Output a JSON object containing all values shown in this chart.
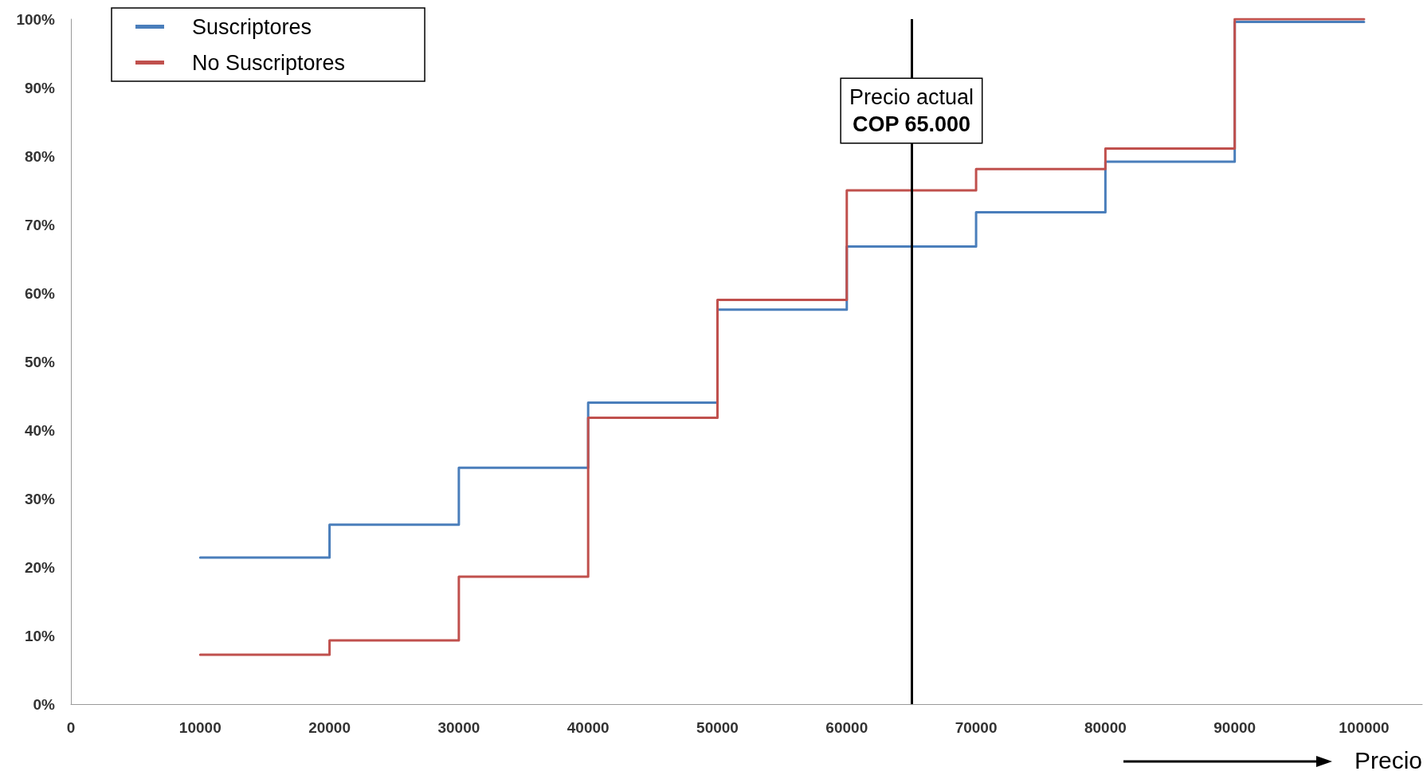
{
  "chart_data": {
    "type": "step",
    "xlabel": "Precio",
    "x": [
      10000,
      20000,
      30000,
      40000,
      50000,
      60000,
      70000,
      80000,
      90000,
      100000
    ],
    "series": [
      {
        "name": "Suscriptores",
        "color": "#4a7ebb",
        "values": [
          21.4,
          26.2,
          34.5,
          44,
          57.6,
          66.8,
          71.8,
          79.2,
          99.6,
          99.6
        ]
      },
      {
        "name": "No Suscriptores",
        "color": "#c0504d",
        "values": [
          7.2,
          9.3,
          18.6,
          41.8,
          59,
          75,
          78.1,
          81.1,
          100,
          100
        ]
      }
    ],
    "xlim": [
      0,
      104500
    ],
    "xticks": [
      0,
      10000,
      20000,
      30000,
      40000,
      50000,
      60000,
      70000,
      80000,
      90000,
      100000
    ],
    "ylim": [
      0,
      100
    ],
    "yticks": [
      {
        "value": 0,
        "label": "0%"
      },
      {
        "value": 10,
        "label": "10%"
      },
      {
        "value": 20,
        "label": "20%"
      },
      {
        "value": 30,
        "label": "30%"
      },
      {
        "value": 40,
        "label": "40%"
      },
      {
        "value": 50,
        "label": "50%"
      },
      {
        "value": 60,
        "label": "60%"
      },
      {
        "value": 70,
        "label": "70%"
      },
      {
        "value": 80,
        "label": "80%"
      },
      {
        "value": 90,
        "label": "90%"
      },
      {
        "value": 100,
        "label": "100%"
      }
    ],
    "ref_lines": [
      {
        "axis": "x",
        "value": 65000,
        "label": "Precio actual\nCOP 65.000",
        "color": "#000000"
      }
    ],
    "grid": false,
    "legend": "top left",
    "marker": "none",
    "line_style": "solid"
  }
}
